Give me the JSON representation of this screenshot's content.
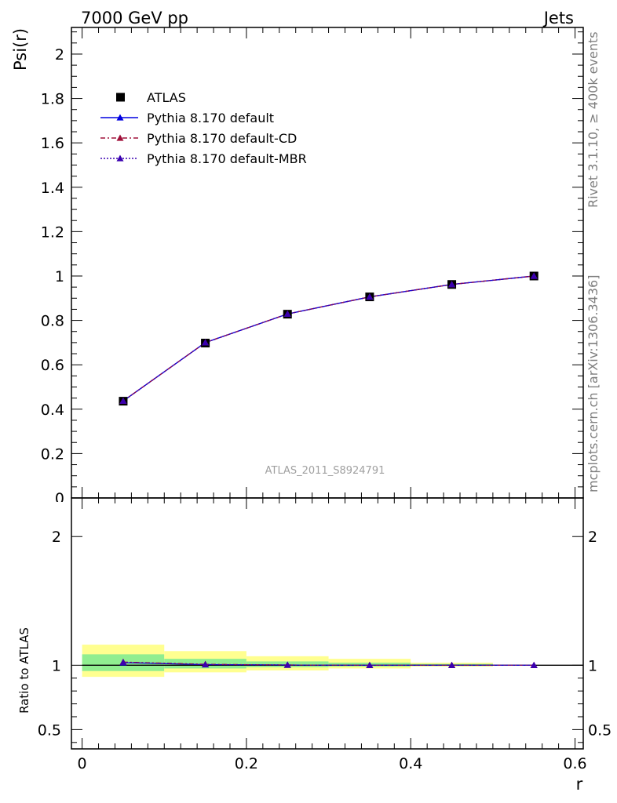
{
  "header": {
    "left": "7000 GeV pp",
    "right": "Jets"
  },
  "side_labels": {
    "upper": "Rivet 3.1.10, ≥ 400k events",
    "lower": "mcplots.cern.ch [arXiv:1306.3436]"
  },
  "watermark": "ATLAS_2011_S8924791",
  "colors": {
    "atlas": "#000000",
    "default": "#0000e0",
    "cd": "#a0103a",
    "mbr": "#3a00b0",
    "band_inner": "#90ee90",
    "band_outer": "#ffff90"
  },
  "chart_data": [
    {
      "type": "line",
      "panel": "main",
      "ylabel": "Psi(r)",
      "xlim": [
        -0.013,
        0.61
      ],
      "ylim": [
        0,
        2.12
      ],
      "yticks": [
        0.2,
        0.4,
        0.6,
        0.8,
        1,
        1.2,
        1.4,
        1.6,
        1.8,
        2
      ],
      "ytick_labels": [
        "0.2",
        "0.4",
        "0.6",
        "0.8",
        "1",
        "1.2",
        "1.4",
        "1.6",
        "1.8",
        "2"
      ],
      "legend_position": "top-left",
      "x": [
        0.05,
        0.15,
        0.25,
        0.35,
        0.45,
        0.55
      ],
      "series": [
        {
          "name": "ATLAS",
          "style": "marker-square",
          "values": [
            0.436,
            0.698,
            0.828,
            0.906,
            0.962,
            1.0
          ]
        },
        {
          "name": "Pythia 8.170 default",
          "style": "solid",
          "values": [
            0.437,
            0.7,
            0.829,
            0.906,
            0.962,
            1.0
          ]
        },
        {
          "name": "Pythia 8.170 default-CD",
          "style": "dashdot",
          "values": [
            0.437,
            0.7,
            0.829,
            0.906,
            0.962,
            1.0
          ]
        },
        {
          "name": "Pythia 8.170 default-MBR",
          "style": "dotted",
          "values": [
            0.437,
            0.7,
            0.829,
            0.906,
            0.962,
            1.0
          ]
        }
      ]
    },
    {
      "type": "line",
      "panel": "ratio",
      "xlabel": "r",
      "ylabel": "Ratio to ATLAS",
      "xlim": [
        -0.013,
        0.61
      ],
      "ylim": [
        0.35,
        2.3
      ],
      "yticks": [
        0.5,
        1,
        2
      ],
      "ytick_labels": [
        "0.5",
        "1",
        "2"
      ],
      "xticks": [
        0,
        0.2,
        0.4,
        0.6
      ],
      "xtick_labels": [
        "0",
        "0.2",
        "0.4",
        "0.6"
      ],
      "x": [
        0.05,
        0.15,
        0.25,
        0.35,
        0.45,
        0.55
      ],
      "bands": [
        {
          "x0": 0.0,
          "x1": 0.1,
          "inner": [
            0.955,
            1.085
          ],
          "outer": [
            0.91,
            1.16
          ]
        },
        {
          "x0": 0.1,
          "x1": 0.2,
          "inner": [
            0.975,
            1.05
          ],
          "outer": [
            0.945,
            1.11
          ]
        },
        {
          "x0": 0.2,
          "x1": 0.3,
          "inner": [
            0.985,
            1.03
          ],
          "outer": [
            0.96,
            1.07
          ]
        },
        {
          "x0": 0.3,
          "x1": 0.4,
          "inner": [
            0.99,
            1.02
          ],
          "outer": [
            0.975,
            1.05
          ]
        },
        {
          "x0": 0.4,
          "x1": 0.5,
          "inner": [
            0.995,
            1.01
          ],
          "outer": [
            0.99,
            1.02
          ]
        },
        {
          "x0": 0.5,
          "x1": 0.6,
          "inner": [
            1.0,
            1.0
          ],
          "outer": [
            1.0,
            1.0
          ]
        }
      ],
      "series": [
        {
          "name": "Pythia 8.170 default",
          "values": [
            1.02,
            1.005,
            1.002,
            1.0,
            1.0,
            1.0
          ]
        },
        {
          "name": "Pythia 8.170 default-CD",
          "values": [
            1.025,
            1.008,
            1.002,
            1.0,
            1.0,
            1.0
          ]
        },
        {
          "name": "Pythia 8.170 default-MBR",
          "values": [
            1.023,
            1.006,
            1.002,
            1.0,
            1.0,
            1.0
          ]
        }
      ]
    }
  ]
}
